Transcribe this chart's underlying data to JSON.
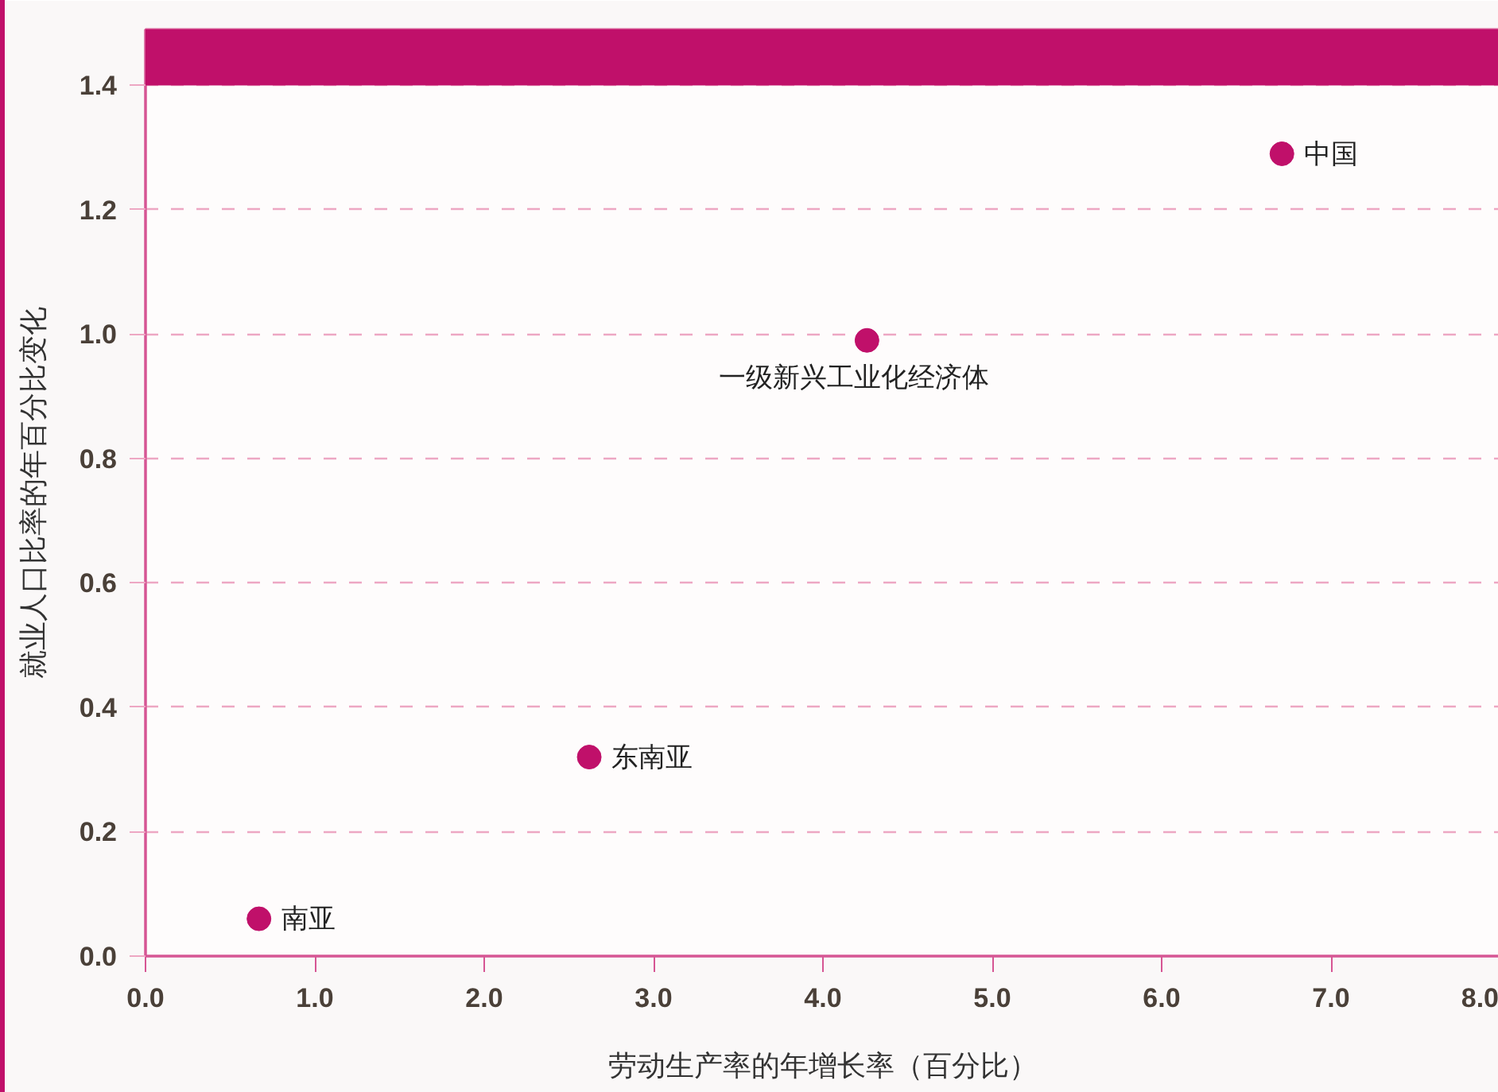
{
  "chart_data": {
    "type": "scatter",
    "xlabel": "劳动生产率的年增长率（百分比）",
    "ylabel": "就业人口比率的年百分比变化",
    "x": [
      0.67,
      2.62,
      4.26,
      6.71
    ],
    "values": [
      0.06,
      0.32,
      0.99,
      1.29
    ],
    "color": "#c0106a",
    "marker": "circle",
    "grid": "y",
    "xlim": [
      0,
      8
    ],
    "ylim": [
      0,
      1.49
    ],
    "xticks": [
      {
        "value": 0,
        "label": "0.0"
      },
      {
        "value": 1,
        "label": "1.0"
      },
      {
        "value": 2,
        "label": "2.0"
      },
      {
        "value": 3,
        "label": "3.0"
      },
      {
        "value": 4,
        "label": "4.0"
      },
      {
        "value": 5,
        "label": "5.0"
      },
      {
        "value": 6,
        "label": "6.0"
      },
      {
        "value": 7,
        "label": "7.0"
      },
      {
        "value": 8,
        "label": "8.0"
      }
    ],
    "yticks": [
      {
        "value": 0,
        "label": "0.0"
      },
      0.2,
      0.4,
      0.6,
      0.8,
      {
        "value": 1,
        "label": "1.0"
      },
      1.2,
      1.4
    ],
    "bands": [
      {
        "axis": "y",
        "from": 1.4,
        "to": 1.49,
        "color": "#c0106a"
      }
    ],
    "annotations": [
      {
        "text": "南亚",
        "x": 0.67,
        "y": 0.06
      },
      {
        "text": "东南亚",
        "x": 2.62,
        "y": 0.32
      },
      {
        "text": "一级新兴工业化经济体",
        "x": 4.26,
        "y": 0.99
      },
      {
        "text": "中国",
        "x": 6.71,
        "y": 1.29
      }
    ]
  }
}
